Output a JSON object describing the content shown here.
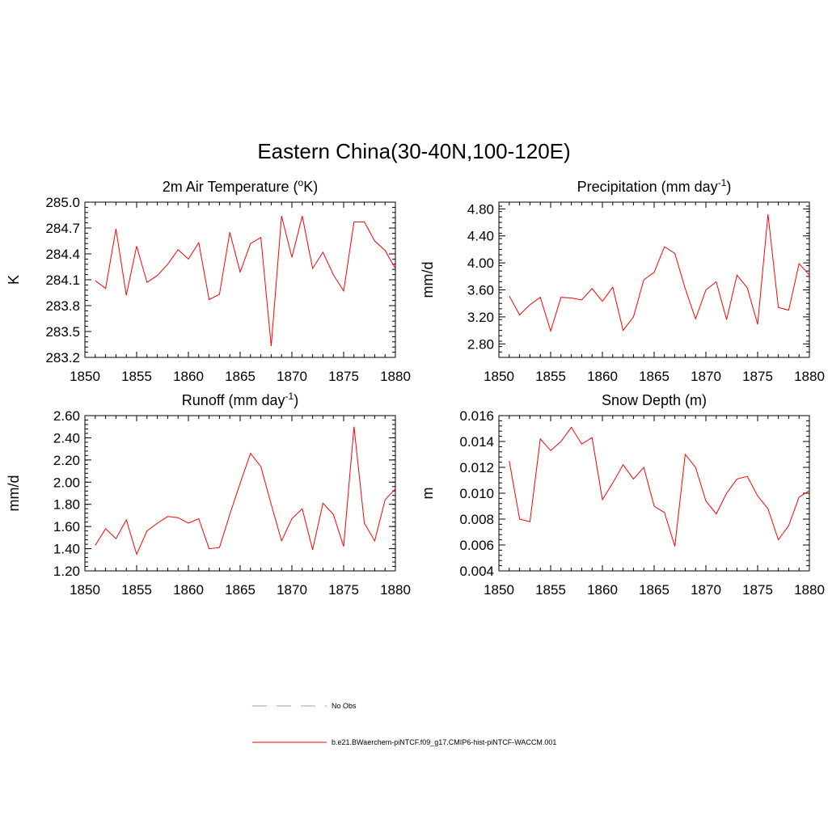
{
  "title": "Eastern China(30-40N,100-120E)",
  "chart_data": [
    {
      "type": "line",
      "title": "2m Air Temperature (",
      "title_sup": "o",
      "title_tail": "K)",
      "ylabel": "K",
      "xlim": [
        1850,
        1880
      ],
      "ylim": [
        283.2,
        285.0
      ],
      "xticks": [
        "1850",
        "1855",
        "1860",
        "1865",
        "1870",
        "1875",
        "1880"
      ],
      "yticks": [
        "283.2",
        "283.5",
        "283.8",
        "284.1",
        "284.4",
        "284.7",
        "285.0"
      ],
      "x": [
        1851,
        1852,
        1853,
        1854,
        1855,
        1856,
        1857,
        1858,
        1859,
        1860,
        1861,
        1862,
        1863,
        1864,
        1865,
        1866,
        1867,
        1868,
        1869,
        1870,
        1871,
        1872,
        1873,
        1874,
        1875,
        1876,
        1877,
        1878,
        1879,
        1880
      ],
      "series": [
        {
          "values": [
            284.09,
            284.0,
            284.69,
            283.92,
            284.49,
            284.07,
            284.15,
            284.28,
            284.45,
            284.34,
            284.53,
            283.87,
            283.93,
            284.65,
            284.19,
            284.52,
            284.59,
            283.33,
            284.84,
            284.36,
            284.84,
            284.23,
            284.42,
            284.16,
            283.97,
            284.77,
            284.77,
            284.55,
            284.44,
            284.23
          ]
        }
      ]
    },
    {
      "type": "line",
      "title": "Precipitation (mm day",
      "title_sup": "-1",
      "title_tail": ")",
      "ylabel": "mm/d",
      "xlim": [
        1850,
        1880
      ],
      "ylim": [
        2.6,
        4.9
      ],
      "xticks": [
        "1850",
        "1855",
        "1860",
        "1865",
        "1870",
        "1875",
        "1880"
      ],
      "yticks": [
        "2.80",
        "3.20",
        "3.60",
        "4.00",
        "4.40",
        "4.80"
      ],
      "ytick_values": [
        2.8,
        3.2,
        3.6,
        4.0,
        4.4,
        4.8
      ],
      "x": [
        1851,
        1852,
        1853,
        1854,
        1855,
        1856,
        1857,
        1858,
        1859,
        1860,
        1861,
        1862,
        1863,
        1864,
        1865,
        1866,
        1867,
        1868,
        1869,
        1870,
        1871,
        1872,
        1873,
        1874,
        1875,
        1876,
        1877,
        1878,
        1879,
        1880
      ],
      "series": [
        {
          "values": [
            3.51,
            3.23,
            3.38,
            3.49,
            2.99,
            3.49,
            3.48,
            3.45,
            3.62,
            3.43,
            3.64,
            3.0,
            3.2,
            3.75,
            3.86,
            4.24,
            4.14,
            3.62,
            3.17,
            3.6,
            3.72,
            3.16,
            3.82,
            3.63,
            3.09,
            4.72,
            3.34,
            3.3,
            3.99,
            3.82
          ]
        }
      ]
    },
    {
      "type": "line",
      "title": "Runoff (mm day",
      "title_sup": "-1",
      "title_tail": ")",
      "ylabel": "mm/d",
      "xlim": [
        1850,
        1880
      ],
      "ylim": [
        1.2,
        2.6
      ],
      "xticks": [
        "1850",
        "1855",
        "1860",
        "1865",
        "1870",
        "1875",
        "1880"
      ],
      "yticks": [
        "1.20",
        "1.40",
        "1.60",
        "1.80",
        "2.00",
        "2.20",
        "2.40",
        "2.60"
      ],
      "x": [
        1851,
        1852,
        1853,
        1854,
        1855,
        1856,
        1857,
        1858,
        1859,
        1860,
        1861,
        1862,
        1863,
        1864,
        1865,
        1866,
        1867,
        1868,
        1869,
        1870,
        1871,
        1872,
        1873,
        1874,
        1875,
        1876,
        1877,
        1878,
        1879,
        1880
      ],
      "series": [
        {
          "values": [
            1.43,
            1.58,
            1.49,
            1.66,
            1.35,
            1.56,
            1.63,
            1.69,
            1.68,
            1.63,
            1.67,
            1.4,
            1.41,
            1.71,
            1.99,
            2.26,
            2.14,
            1.8,
            1.47,
            1.67,
            1.76,
            1.39,
            1.81,
            1.71,
            1.42,
            2.5,
            1.63,
            1.47,
            1.84,
            1.94
          ]
        }
      ]
    },
    {
      "type": "line",
      "title": "Snow Depth (m)",
      "title_sup": "",
      "title_tail": "",
      "ylabel": "m",
      "xlim": [
        1850,
        1880
      ],
      "ylim": [
        0.004,
        0.016
      ],
      "xticks": [
        "1850",
        "1855",
        "1860",
        "1865",
        "1870",
        "1875",
        "1880"
      ],
      "yticks": [
        "0.004",
        "0.006",
        "0.008",
        "0.010",
        "0.012",
        "0.014",
        "0.016"
      ],
      "x": [
        1851,
        1852,
        1853,
        1854,
        1855,
        1856,
        1857,
        1858,
        1859,
        1860,
        1861,
        1862,
        1863,
        1864,
        1865,
        1866,
        1867,
        1868,
        1869,
        1870,
        1871,
        1872,
        1873,
        1874,
        1875,
        1876,
        1877,
        1878,
        1879,
        1880
      ],
      "series": [
        {
          "values": [
            0.0125,
            0.008,
            0.0078,
            0.0142,
            0.0133,
            0.014,
            0.0151,
            0.0138,
            0.0143,
            0.0095,
            0.0108,
            0.0122,
            0.0111,
            0.012,
            0.009,
            0.0085,
            0.0059,
            0.013,
            0.012,
            0.0094,
            0.0084,
            0.01,
            0.0111,
            0.0113,
            0.0098,
            0.0088,
            0.0064,
            0.0075,
            0.0097,
            0.0102
          ]
        }
      ]
    }
  ],
  "legend": {
    "items": [
      {
        "label": "No Obs",
        "color": "#9999dd",
        "dash": "dashed"
      },
      {
        "label": "b.e21.BWaerchem-piNTCF.f09_g17.CMIP6-hist-piNTCF-WACCM.001",
        "color": "#ff0000",
        "dash": "solid"
      }
    ]
  },
  "colors": {
    "line": "#ff0000",
    "axis": "#000000"
  }
}
